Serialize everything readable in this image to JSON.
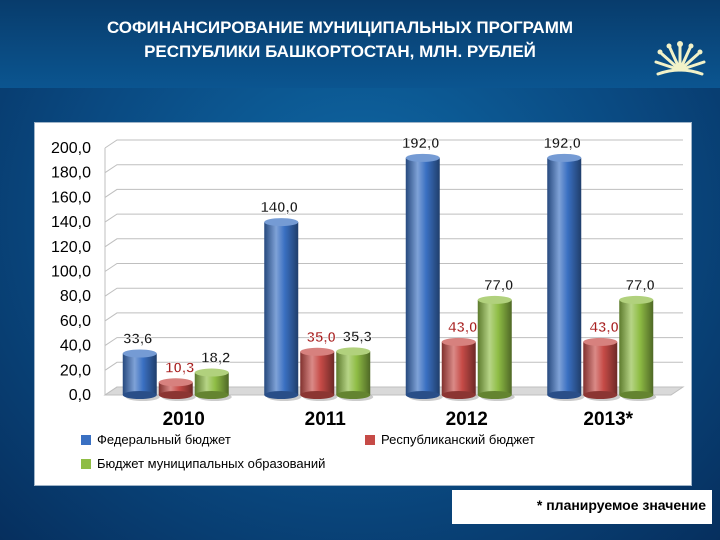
{
  "page": {
    "title_line1": "СОФИНАНСИРОВАНИЕ МУНИЦИПАЛЬНЫХ ПРОГРАММ",
    "title_line2": "РЕСПУБЛИКИ БАШКОРТОСТАН, МЛН. РУБЛЕЙ",
    "footnote": "* планируемое значение",
    "logo_icon": "sunburst-emblem-icon"
  },
  "chart_data": {
    "type": "bar",
    "style": "3d-cylinder",
    "categories": [
      "2010",
      "2011",
      "2012",
      "2013*"
    ],
    "series": [
      {
        "name": "Федеральный бюджет",
        "color": "#3a70c2",
        "values": [
          33.6,
          140.0,
          192.0,
          192.0
        ],
        "labels": [
          "33,6",
          "140,0",
          "192,0",
          "192,0"
        ]
      },
      {
        "name": "Республиканский бюджет",
        "color": "#c64b47",
        "values": [
          10.3,
          35.0,
          43.0,
          43.0
        ],
        "labels": [
          "10,3",
          "35,0",
          "43,0",
          "43,0"
        ]
      },
      {
        "name": "Бюджет муниципальных образований",
        "color": "#8fbd45",
        "values": [
          18.2,
          35.3,
          77.0,
          77.0
        ],
        "labels": [
          "18,2",
          "35,3",
          "77,0",
          "77,0"
        ]
      }
    ],
    "y_ticks": [
      "0,0",
      "20,0",
      "40,0",
      "60,0",
      "80,0",
      "100,0",
      "120,0",
      "140,0",
      "160,0",
      "180,0",
      "200,0"
    ],
    "ylim": [
      0,
      200
    ],
    "grid": true,
    "legend_position": "bottom"
  }
}
